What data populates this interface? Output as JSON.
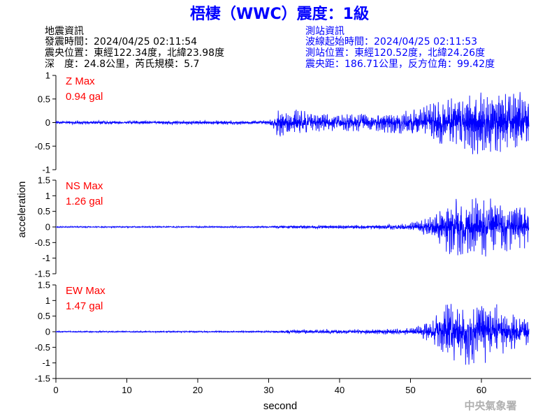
{
  "header": {
    "title": "梧棲（WWC）震度：1級",
    "quake_label": "地震資訊",
    "quake_time": "發震時間：2024/04/25 02:11:54",
    "quake_location": "震央位置：東經122.34度，北緯23.98度",
    "quake_depth": "深　度：24.8公里，芮氏規模：5.7",
    "station_label": "測站資訊",
    "wave_start": "波線起始時間：2024/04/25 02:11:53",
    "station_location": "測站位置：東經120.52度，北緯24.26度",
    "distance": "震央距：186.71公里，反方位角：99.42度"
  },
  "footer": {
    "agency": "中央氣象署"
  },
  "chart_data": {
    "type": "line",
    "xlabel": "second",
    "ylabel": "acceleration",
    "xlim": [
      0,
      67
    ],
    "xticks": [
      0,
      10,
      20,
      30,
      40,
      50,
      60
    ],
    "colors": {
      "trace": "#0000ff",
      "peak_label": "#ff0000",
      "title": "#0000ff"
    },
    "panels": [
      {
        "component": "Z",
        "peak_name": "Z Max",
        "peak_value": "0.94 gal",
        "ylim": [
          -1,
          1
        ],
        "yticks": [
          1,
          0.5,
          0,
          -0.5,
          -1
        ],
        "ytick_labels": [
          "1",
          "0.5",
          "0",
          "-0.5",
          "-1"
        ],
        "envelope": [
          [
            0,
            0.04
          ],
          [
            30,
            0.05
          ],
          [
            31.5,
            0.35
          ],
          [
            34,
            0.3
          ],
          [
            38,
            0.2
          ],
          [
            45,
            0.2
          ],
          [
            50,
            0.3
          ],
          [
            53,
            0.45
          ],
          [
            57,
            0.6
          ],
          [
            60,
            0.75
          ],
          [
            66.5,
            0.65
          ]
        ]
      },
      {
        "component": "NS",
        "peak_name": "NS Max",
        "peak_value": "1.26 gal",
        "ylim": [
          -1.5,
          1.5
        ],
        "yticks": [
          1.5,
          1,
          0.5,
          0,
          -0.5,
          -1,
          -1.5
        ],
        "ytick_labels": [
          "1.5",
          "1",
          "0.5",
          "0",
          "-0.5",
          "-1",
          "-1.5"
        ],
        "envelope": [
          [
            0,
            0.02
          ],
          [
            30,
            0.03
          ],
          [
            33,
            0.06
          ],
          [
            45,
            0.07
          ],
          [
            50,
            0.12
          ],
          [
            53,
            0.4
          ],
          [
            55,
            0.9
          ],
          [
            60,
            1.05
          ],
          [
            63,
            0.9
          ],
          [
            66.5,
            0.75
          ]
        ]
      },
      {
        "component": "EW",
        "peak_name": "EW Max",
        "peak_value": "1.47 gal",
        "ylim": [
          -1.5,
          1.5
        ],
        "yticks": [
          1.5,
          1,
          0.5,
          0,
          -0.5,
          -1,
          -1.5
        ],
        "ytick_labels": [
          "1.5",
          "1",
          "0.5",
          "0",
          "-0.5",
          "-1",
          "-1.5"
        ],
        "envelope": [
          [
            0,
            0.02
          ],
          [
            30,
            0.03
          ],
          [
            33,
            0.07
          ],
          [
            45,
            0.08
          ],
          [
            50,
            0.12
          ],
          [
            53,
            0.35
          ],
          [
            55,
            0.95
          ],
          [
            58,
            1.1
          ],
          [
            61,
            1.0
          ],
          [
            64,
            0.7
          ],
          [
            66.5,
            0.5
          ]
        ]
      }
    ]
  }
}
